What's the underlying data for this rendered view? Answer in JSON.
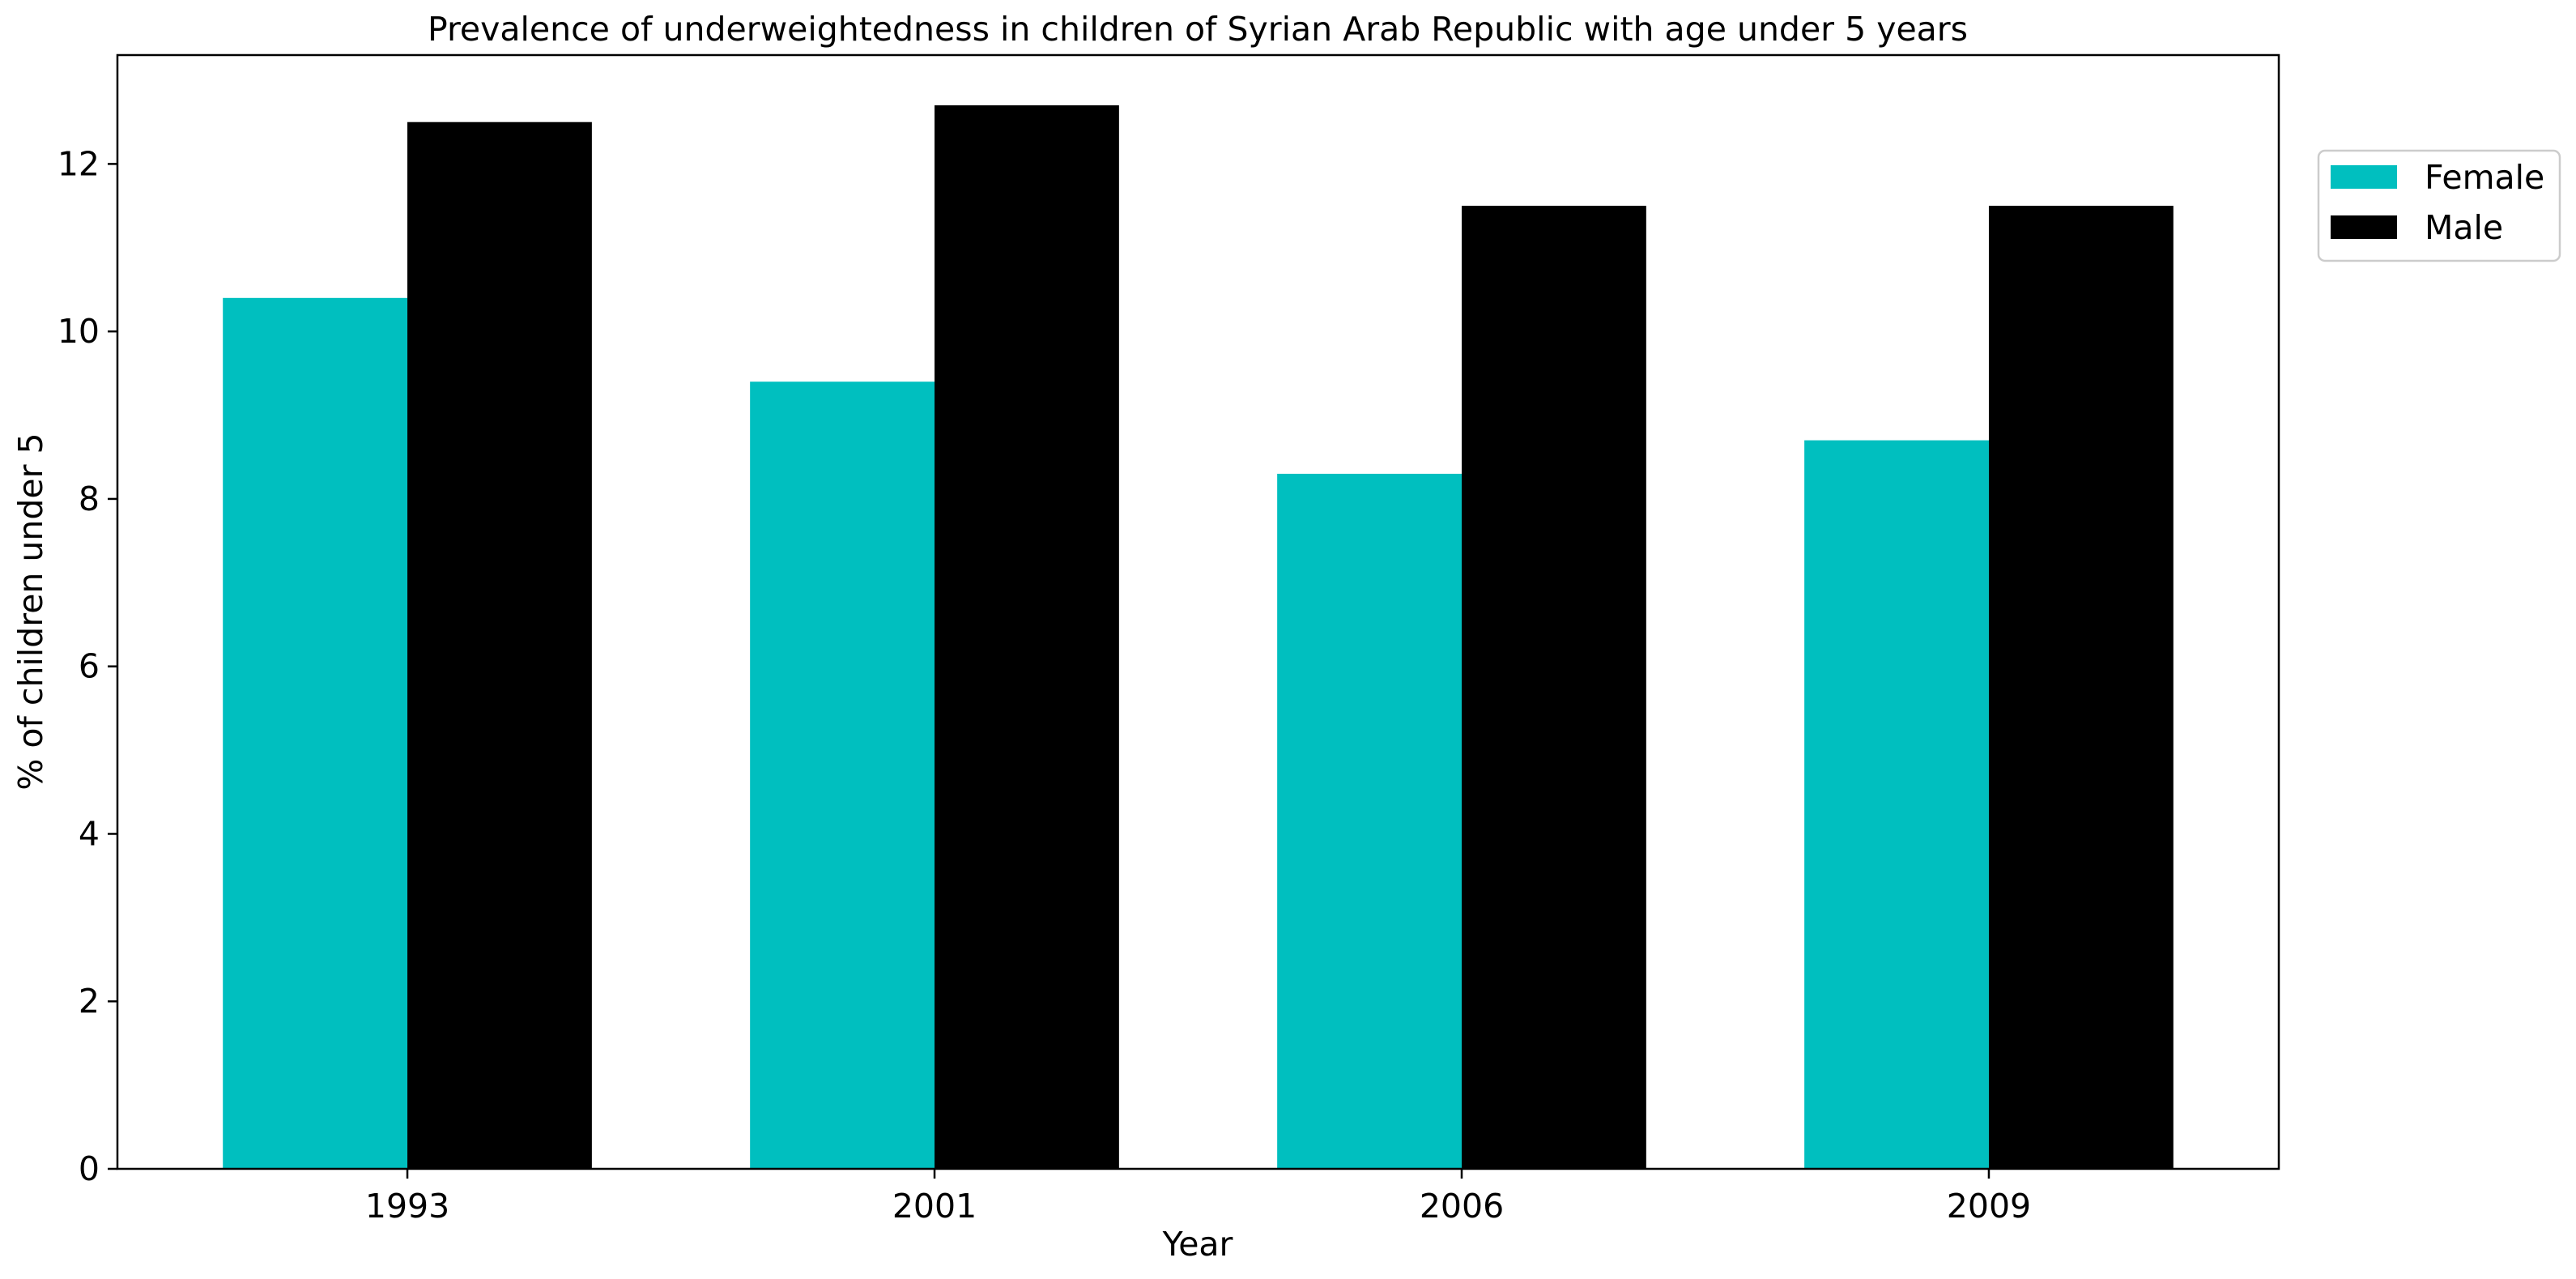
{
  "chart_data": {
    "type": "bar",
    "title": "Prevalence of underweightedness in children of Syrian Arab Republic with age under 5 years",
    "xlabel": "Year",
    "ylabel": "% of children under 5",
    "categories": [
      "1993",
      "2001",
      "2006",
      "2009"
    ],
    "series": [
      {
        "name": "Female",
        "color": "#00bfbf",
        "values": [
          10.4,
          9.4,
          8.3,
          8.7
        ]
      },
      {
        "name": "Male",
        "color": "#000000",
        "values": [
          12.5,
          12.7,
          11.5,
          11.5
        ]
      }
    ],
    "ylim": [
      0,
      13.3
    ],
    "yticks": [
      0,
      2,
      4,
      6,
      8,
      10,
      12
    ],
    "grid": false,
    "legend": "upper-right-outside"
  }
}
